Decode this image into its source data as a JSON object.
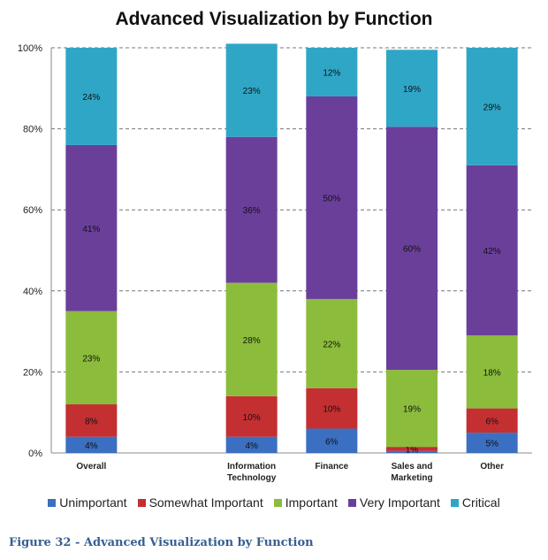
{
  "chart_data": {
    "type": "bar",
    "stacked": true,
    "title": "Advanced Visualization by Function",
    "categories": [
      [
        "Overall"
      ],
      [],
      [
        "Information",
        "Technology"
      ],
      [
        "Finance"
      ],
      [
        "Sales and",
        "Marketing"
      ],
      [
        "Other"
      ]
    ],
    "ylim": [
      0,
      100
    ],
    "y_ticks": [
      "0%",
      "20%",
      "40%",
      "60%",
      "80%",
      "100%"
    ],
    "grid": true,
    "legend_position": "bottom",
    "series": [
      {
        "name": "Unimportant",
        "color": "#3b6fc1",
        "values": [
          4,
          null,
          4,
          6,
          0.5,
          5
        ],
        "labels": [
          "4%",
          "",
          "4%",
          "6%",
          "",
          "5%"
        ]
      },
      {
        "name": "Somewhat Important",
        "color": "#c42f32",
        "values": [
          8,
          null,
          10,
          10,
          1,
          6
        ],
        "labels": [
          "8%",
          "",
          "10%",
          "10%",
          "1%",
          "6%"
        ]
      },
      {
        "name": "Important",
        "color": "#8cbc3c",
        "values": [
          23,
          null,
          28,
          22,
          19,
          18
        ],
        "labels": [
          "23%",
          "",
          "28%",
          "22%",
          "19%",
          "18%"
        ]
      },
      {
        "name": "Very Important",
        "color": "#6a3f9a",
        "values": [
          41,
          null,
          36,
          50,
          60,
          42
        ],
        "labels": [
          "41%",
          "",
          "36%",
          "50%",
          "60%",
          "42%"
        ]
      },
      {
        "name": "Critical",
        "color": "#2fa6c6",
        "values": [
          24,
          null,
          23,
          12,
          19,
          29
        ],
        "labels": [
          "24%",
          "",
          "23%",
          "12%",
          "19%",
          "29%"
        ]
      }
    ]
  },
  "caption": "Figure 32 - Advanced Visualization by Function"
}
